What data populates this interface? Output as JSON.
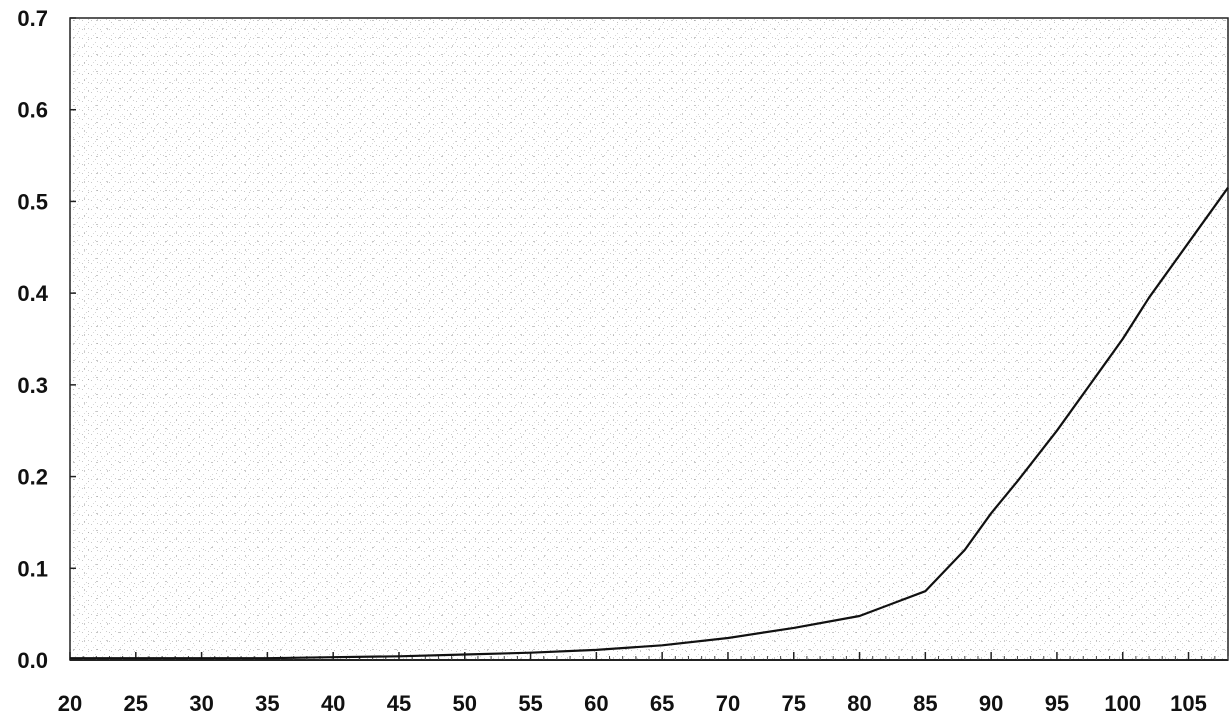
{
  "chart_data": {
    "type": "line",
    "title": "",
    "xlabel": "",
    "ylabel": "",
    "xlim": [
      20,
      108
    ],
    "ylim": [
      0,
      0.7
    ],
    "x_ticks": [
      20,
      25,
      30,
      35,
      40,
      45,
      50,
      55,
      60,
      65,
      70,
      75,
      80,
      85,
      90,
      95,
      100,
      105
    ],
    "x_tick_labels": [
      "20",
      "25",
      "30",
      "35",
      "40",
      "45",
      "50",
      "55",
      "60",
      "65",
      "70",
      "75",
      "80",
      "85",
      "90",
      "95",
      "100",
      "105"
    ],
    "y_ticks": [
      0,
      0.1,
      0.2,
      0.3,
      0.4,
      0.5,
      0.6,
      0.7
    ],
    "y_tick_labels": [
      "0.0",
      "0.1",
      "0.2",
      "0.3",
      "0.4",
      "0.5",
      "0.6",
      "0.7"
    ],
    "grid": false,
    "legend": "none",
    "series": [
      {
        "color": "#111111",
        "x": [
          20,
          25,
          30,
          35,
          40,
          45,
          50,
          55,
          60,
          65,
          70,
          75,
          80,
          85,
          88,
          90,
          92,
          95,
          98,
          100,
          102,
          105,
          108
        ],
        "y": [
          0.002,
          0.002,
          0.002,
          0.002,
          0.003,
          0.004,
          0.006,
          0.008,
          0.011,
          0.016,
          0.024,
          0.035,
          0.048,
          0.075,
          0.12,
          0.16,
          0.195,
          0.25,
          0.31,
          0.35,
          0.395,
          0.455,
          0.515
        ]
      }
    ]
  }
}
